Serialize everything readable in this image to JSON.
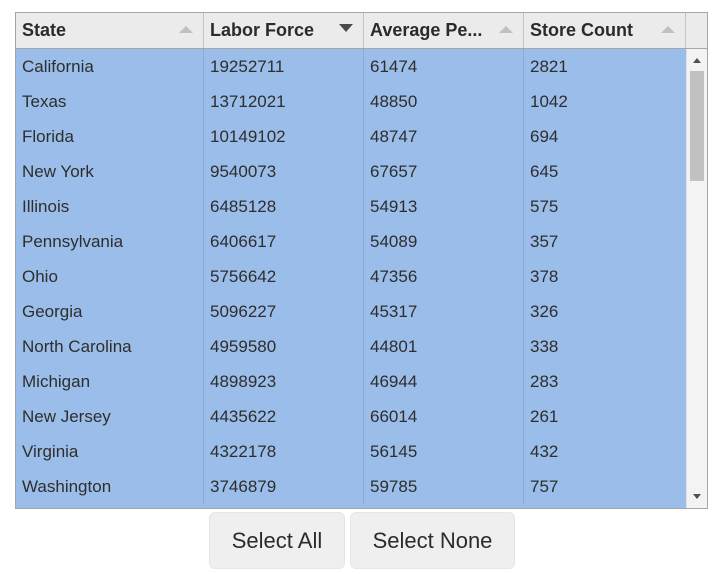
{
  "table": {
    "columns": [
      {
        "label": "State",
        "sort": "none"
      },
      {
        "label": "Labor Force",
        "sort": "descending"
      },
      {
        "label": "Average Pe...",
        "sort": "none"
      },
      {
        "label": "Store Count",
        "sort": "none"
      }
    ],
    "rows": [
      [
        "California",
        "19252711",
        "61474",
        "2821"
      ],
      [
        "Texas",
        "13712021",
        "48850",
        "1042"
      ],
      [
        "Florida",
        "10149102",
        "48747",
        "694"
      ],
      [
        "New York",
        "9540073",
        "67657",
        "645"
      ],
      [
        "Illinois",
        "6485128",
        "54913",
        "575"
      ],
      [
        "Pennsylvania",
        "6406617",
        "54089",
        "357"
      ],
      [
        "Ohio",
        "5756642",
        "47356",
        "378"
      ],
      [
        "Georgia",
        "5096227",
        "45317",
        "326"
      ],
      [
        "North Carolina",
        "4959580",
        "44801",
        "338"
      ],
      [
        "Michigan",
        "4898923",
        "46944",
        "283"
      ],
      [
        "New Jersey",
        "4435622",
        "66014",
        "261"
      ],
      [
        "Virginia",
        "4322178",
        "56145",
        "432"
      ],
      [
        "Washington",
        "3746879",
        "59785",
        "757"
      ]
    ],
    "selection_color": "#9bbde9",
    "header_color": "#ebebeb"
  },
  "icons": {
    "sort_ascending": "triangle-up-icon",
    "sort_descending": "triangle-down-icon",
    "scroll_up": "scroll-up-arrow-icon",
    "scroll_down": "scroll-down-arrow-icon"
  },
  "buttons": {
    "select_all": "Select All",
    "select_none": "Select None"
  }
}
